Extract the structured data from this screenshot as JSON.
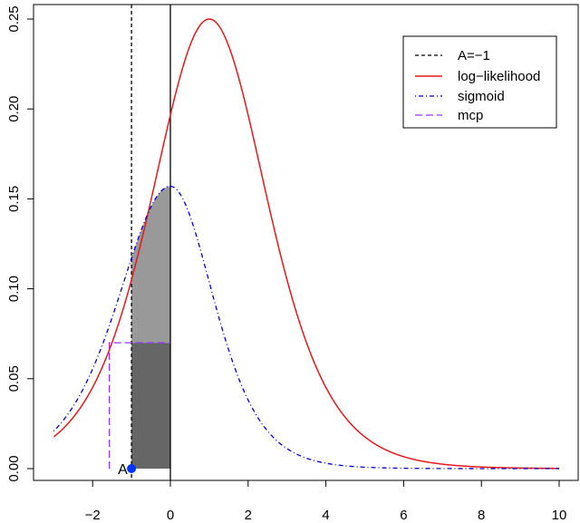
{
  "chart_data": {
    "type": "line",
    "title": "",
    "xlabel": "",
    "ylabel": "",
    "xlim": [
      -3.5,
      10.5
    ],
    "ylim": [
      0,
      0.25
    ],
    "x_ticks": [
      -2,
      0,
      2,
      4,
      6,
      8,
      10
    ],
    "y_ticks": [
      0.0,
      0.05,
      0.1,
      0.15,
      0.2,
      0.25
    ],
    "x_tick_labels": [
      "−2",
      "0",
      "2",
      "4",
      "6",
      "8",
      "10"
    ],
    "y_tick_labels": [
      "0.00",
      "0.05",
      "0.10",
      "0.15",
      "0.20",
      "0.25"
    ],
    "grid": false,
    "legend_position": "top-right",
    "legend": [
      {
        "label": "A=−1",
        "color": "#000000",
        "style": "dashed"
      },
      {
        "label": "log−likelihood",
        "color": "#e41a1c",
        "style": "solid"
      },
      {
        "label": "sigmoid",
        "color": "#0000cc",
        "style": "dotdash"
      },
      {
        "label": "mcp",
        "color": "#9933ff",
        "style": "longdash"
      }
    ],
    "series": [
      {
        "name": "log−likelihood",
        "color": "#e41a1c",
        "x": [
          -3,
          -2.5,
          -2,
          -1.5,
          -1,
          -0.5,
          0,
          0.5,
          1,
          1.5,
          2,
          2.5,
          3,
          3.5,
          4,
          4.5,
          5,
          6,
          7,
          8,
          9,
          10
        ],
        "y": [
          0.0177,
          0.0285,
          0.0452,
          0.0701,
          0.105,
          0.149,
          0.196,
          0.235,
          0.25,
          0.235,
          0.197,
          0.149,
          0.105,
          0.0702,
          0.0452,
          0.0285,
          0.0177,
          0.0066,
          0.0025,
          0.0009,
          0.0003,
          0.0001
        ]
      },
      {
        "name": "sigmoid",
        "color": "#0000cc",
        "x": [
          -3,
          -2.5,
          -2,
          -1.5,
          -1,
          -0.5,
          0,
          0.5,
          1,
          1.5,
          2,
          2.5,
          3,
          3.5,
          4,
          4.5,
          5,
          6,
          7,
          8,
          9,
          10
        ],
        "y": [
          0.0125,
          0.0215,
          0.036,
          0.058,
          0.087,
          0.12,
          0.157,
          0.144,
          0.114,
          0.08,
          0.052,
          0.032,
          0.019,
          0.011,
          0.0063,
          0.0036,
          0.0021,
          0.0007,
          0.00023,
          8e-05,
          3e-05,
          1e-05
        ]
      }
    ],
    "vertical_lines": [
      {
        "name": "A=−1",
        "x": -1,
        "color": "#000000",
        "style": "dashed"
      },
      {
        "x": 0,
        "color": "#000000",
        "style": "solid"
      }
    ],
    "mcp": {
      "x_left": -1.57,
      "x_right": 0,
      "y": 0.07,
      "color": "#9933ff"
    },
    "shaded_regions": [
      {
        "x_from": -1,
        "x_to": 0,
        "y_from": 0,
        "y_to": 0.07,
        "color": "#666666"
      },
      {
        "x_from": -1,
        "x_to": 0,
        "y_from": 0.07,
        "upper": "sigmoid",
        "color": "#999999"
      }
    ],
    "point": {
      "label": "A",
      "x": -1,
      "y": 0,
      "color": "#0033ff"
    }
  }
}
